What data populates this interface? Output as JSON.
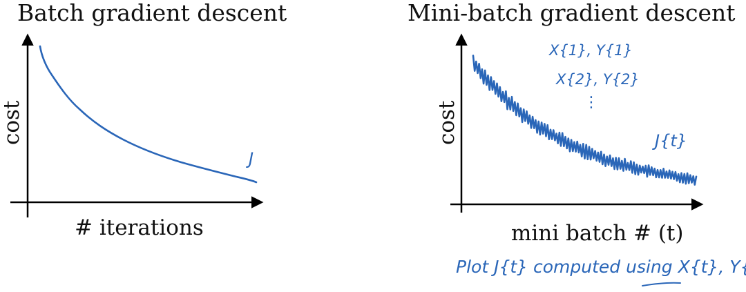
{
  "left_panel": {
    "title": "Batch gradient descent",
    "ylabel": "cost",
    "xlabel": "# iterations",
    "curve_label": "J"
  },
  "right_panel": {
    "title": "Mini-batch gradient descent",
    "ylabel": "cost",
    "xlabel": "mini batch # (t)",
    "curve_label": "J{t}",
    "batch_annotations": [
      "X{1}, Y{1}",
      "X{2}, Y{2}",
      "⋮"
    ],
    "footnote": "Plot J{t} computed using X{t}, Y{t}"
  },
  "colors": {
    "ink": "#2a66b8",
    "axis": "#000000"
  }
}
